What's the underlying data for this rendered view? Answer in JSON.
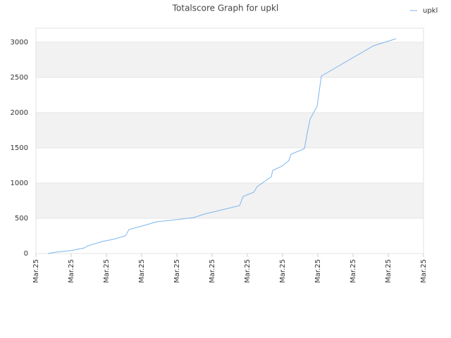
{
  "chart_data": {
    "type": "line",
    "title": "Totalscore Graph for upkl",
    "x": [
      0.34,
      0.58,
      0.98,
      1.38,
      1.48,
      1.88,
      2.18,
      2.54,
      2.64,
      3.08,
      3.42,
      3.98,
      4.48,
      4.78,
      5.78,
      5.88,
      6.18,
      6.28,
      6.68,
      6.72,
      6.98,
      7.18,
      7.24,
      7.62,
      7.7,
      7.78,
      7.98,
      8.1,
      9.58,
      10.22
    ],
    "series": [
      {
        "name": "upkl",
        "color": "#7cb5ec",
        "values": [
          0,
          20,
          40,
          80,
          110,
          170,
          200,
          250,
          340,
          400,
          450,
          480,
          510,
          560,
          680,
          810,
          870,
          950,
          1090,
          1180,
          1240,
          1320,
          1410,
          1490,
          1710,
          1910,
          2090,
          2520,
          2950,
          3050
        ]
      }
    ],
    "xlim": [
      0,
      11
    ],
    "xticks": [
      {
        "value": 0,
        "label": "Mar.25"
      },
      {
        "value": 1,
        "label": "Mar.25"
      },
      {
        "value": 2,
        "label": "Mar.25"
      },
      {
        "value": 3,
        "label": "Mar.25"
      },
      {
        "value": 4,
        "label": "Mar.25"
      },
      {
        "value": 5,
        "label": "Mar.25"
      },
      {
        "value": 6,
        "label": "Mar.25"
      },
      {
        "value": 7,
        "label": "Mar.25"
      },
      {
        "value": 8,
        "label": "Mar.25"
      },
      {
        "value": 9,
        "label": "Mar.25"
      },
      {
        "value": 10,
        "label": "Mar.25"
      },
      {
        "value": 11,
        "label": "Mar.25"
      }
    ],
    "ylim": [
      0,
      3200
    ],
    "yticks": [
      0,
      500,
      1000,
      1500,
      2000,
      2500,
      3000
    ],
    "grid": true,
    "legend": "top-right"
  }
}
